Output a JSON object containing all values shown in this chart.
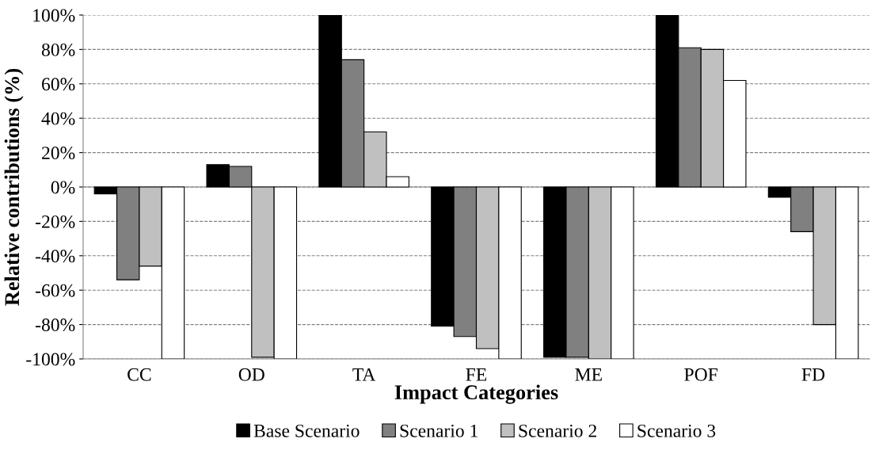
{
  "chart_data": {
    "type": "bar",
    "xlabel": "Impact Categories",
    "ylabel": "Relative contributions (%)",
    "categories": [
      "CC",
      "OD",
      "TA",
      "FE",
      "ME",
      "POF",
      "FD"
    ],
    "series": [
      {
        "name": "Base Scenario",
        "color": "#000000",
        "values": [
          -4,
          13,
          100,
          -81,
          -99,
          100,
          -6
        ]
      },
      {
        "name": "Scenario 1",
        "color": "#808080",
        "values": [
          -54,
          12,
          74,
          -87,
          -99,
          81,
          -26
        ]
      },
      {
        "name": "Scenario 2",
        "color": "#c0c0c0",
        "values": [
          -46,
          -99,
          32,
          -94,
          -100,
          80,
          -80
        ]
      },
      {
        "name": "Scenario 3",
        "color": "#ffffff",
        "values": [
          -100,
          -100,
          6,
          -100,
          -100,
          62,
          -100
        ]
      }
    ],
    "ylim": [
      -100,
      100
    ],
    "yticks": [
      {
        "value": -100,
        "label": "-100%"
      },
      {
        "value": -80,
        "label": "-80%"
      },
      {
        "value": -60,
        "label": "-60%"
      },
      {
        "value": -40,
        "label": "-40%"
      },
      {
        "value": -20,
        "label": "-20%"
      },
      {
        "value": 0,
        "label": "0%"
      },
      {
        "value": 20,
        "label": "20%"
      },
      {
        "value": 40,
        "label": "40%"
      },
      {
        "value": 60,
        "label": "60%"
      },
      {
        "value": 80,
        "label": "80%"
      },
      {
        "value": 100,
        "label": "100%"
      }
    ],
    "grid": "y",
    "legend": "bottom"
  }
}
